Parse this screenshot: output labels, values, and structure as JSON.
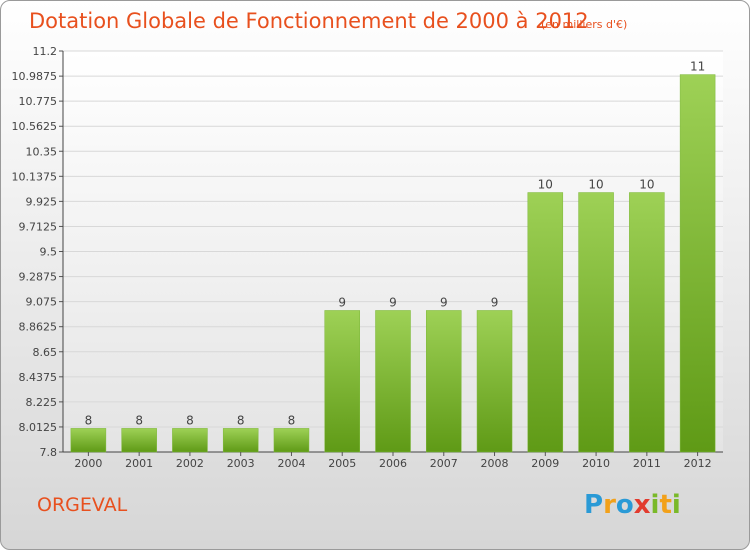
{
  "header": {
    "title": "Dotation Globale de Fonctionnement de 2000 à 2012",
    "units": "(en milliers d'€)"
  },
  "footer": {
    "commune": "ORGEVAL",
    "logo_text": "Proxiti"
  },
  "colors": {
    "accent": "#e8501e",
    "bar_top": "#9ed156",
    "bar_bottom": "#5f9a16"
  },
  "chart_data": {
    "type": "bar",
    "title": "Dotation Globale de Fonctionnement de 2000 à 2012",
    "subtitle": "(en milliers d'€)",
    "categories": [
      "2000",
      "2001",
      "2002",
      "2003",
      "2004",
      "2005",
      "2006",
      "2007",
      "2008",
      "2009",
      "2010",
      "2011",
      "2012"
    ],
    "values": [
      8,
      8,
      8,
      8,
      8,
      9,
      9,
      9,
      9,
      10,
      10,
      10,
      11
    ],
    "data_labels": [
      "8",
      "8",
      "8",
      "8",
      "8",
      "9",
      "9",
      "9",
      "9",
      "10",
      "10",
      "10",
      "11"
    ],
    "ylim": [
      7.8,
      11.2
    ],
    "yticks": [
      "7.8",
      "8.0125",
      "8.225",
      "8.4375",
      "8.65",
      "8.8625",
      "9.075",
      "9.2875",
      "9.5",
      "9.7125",
      "9.925",
      "10.1375",
      "10.35",
      "10.5625",
      "10.775",
      "10.9875",
      "11.2"
    ],
    "grid": true,
    "legend": "none"
  }
}
